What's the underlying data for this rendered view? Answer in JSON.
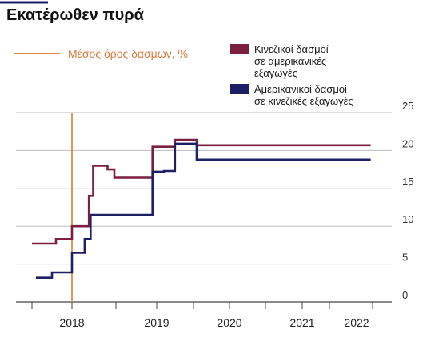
{
  "chart_data": {
    "type": "line",
    "title": "Εκατέρωθεν πυρά",
    "y_axis": {
      "ylim": [
        0,
        25
      ],
      "ticks": [
        0,
        5,
        10,
        15,
        20,
        25
      ],
      "position": "right",
      "grid": true
    },
    "x_axis": {
      "labels": [
        "2018",
        "2019",
        "2020",
        "2021",
        "2022"
      ],
      "xlim": [
        2017.5,
        2022.85
      ]
    },
    "average_line": {
      "label": "Μέσος όρος δασμών, %",
      "x": 2018.0
    },
    "series": [
      {
        "name": "Κινεζικοί δασμοί σε αμερικανικές εξαγωγές",
        "color": "#7a1f3d",
        "step_points": [
          [
            2017.5,
            7.7
          ],
          [
            2017.8,
            8.3
          ],
          [
            2018.0,
            10.0
          ],
          [
            2018.2,
            14.0
          ],
          [
            2018.25,
            18.0
          ],
          [
            2018.42,
            17.5
          ],
          [
            2018.5,
            16.4
          ],
          [
            2018.95,
            20.5
          ],
          [
            2019.25,
            21.4
          ],
          [
            2019.55,
            20.7
          ],
          [
            2022.75,
            20.7
          ]
        ],
        "legend_lines": [
          "Κινεζικοί δασμοί",
          "σε αμερικανικές",
          "εξαγωγές"
        ]
      },
      {
        "name": "Αμερικανικοί δασμοί σε κινεζικές εξαγωγές",
        "color": "#1f1f66",
        "step_points": [
          [
            2017.55,
            3.2
          ],
          [
            2017.75,
            3.9
          ],
          [
            2018.0,
            6.5
          ],
          [
            2018.15,
            8.3
          ],
          [
            2018.22,
            11.5
          ],
          [
            2018.95,
            17.2
          ],
          [
            2019.1,
            17.3
          ],
          [
            2019.25,
            20.9
          ],
          [
            2019.55,
            18.8
          ],
          [
            2022.75,
            18.8
          ]
        ],
        "legend_lines": [
          "Αμερικανικοί δασμοί",
          "σε κινεζικές εξαγωγές"
        ]
      }
    ]
  }
}
